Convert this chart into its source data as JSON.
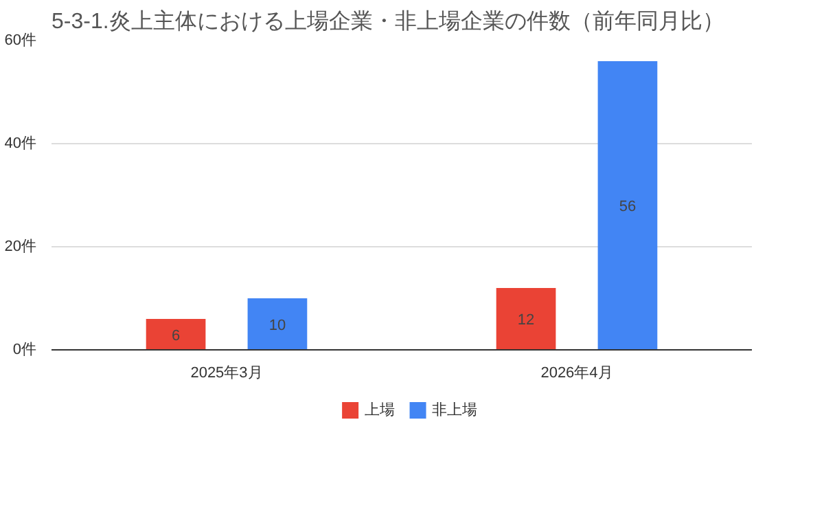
{
  "chart_data": {
    "type": "bar",
    "title": "5-3-1.炎上主体における上場企業・非上場企業の件数（前年同月比）",
    "categories": [
      "2025年3月",
      "2026年4月"
    ],
    "series": [
      {
        "name": "上場",
        "color": "#ea4335",
        "values": [
          6,
          12
        ]
      },
      {
        "name": "非上場",
        "color": "#4285f4",
        "values": [
          10,
          56
        ]
      }
    ],
    "ylim": [
      0,
      60
    ],
    "yticks": [
      {
        "value": 0,
        "label": "0件"
      },
      {
        "value": 20,
        "label": "20件"
      },
      {
        "value": 40,
        "label": "40件"
      },
      {
        "value": 60,
        "label": "60件"
      }
    ],
    "grid": "y",
    "legend": "bottom",
    "data_labels": true
  }
}
